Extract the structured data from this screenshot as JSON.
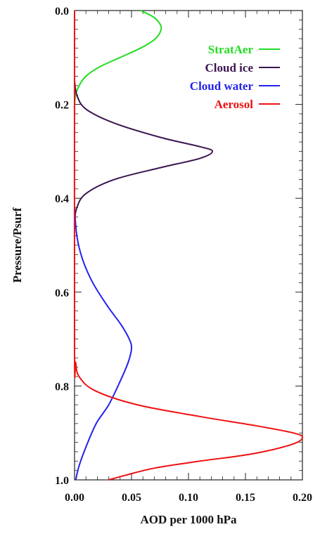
{
  "chart_data": {
    "type": "line",
    "xlabel": "AOD per 1000 hPa",
    "ylabel": "Pressure/Psurf",
    "xlim": [
      0.0,
      0.2
    ],
    "ylim": [
      1.0,
      0.0
    ],
    "y_inverted": true,
    "xticks": [
      "0.00",
      "0.05",
      "0.10",
      "0.15",
      "0.20"
    ],
    "yticks": [
      "0.0",
      "0.2",
      "0.4",
      "0.6",
      "0.8",
      "1.0"
    ],
    "legend_placement": "top-right",
    "grid": false,
    "series": [
      {
        "name": "StratAer",
        "color": "#22dd22",
        "points": [
          [
            0.058,
            0.0
          ],
          [
            0.068,
            0.012
          ],
          [
            0.074,
            0.025
          ],
          [
            0.076,
            0.04
          ],
          [
            0.071,
            0.06
          ],
          [
            0.058,
            0.08
          ],
          [
            0.04,
            0.1
          ],
          [
            0.022,
            0.12
          ],
          [
            0.01,
            0.14
          ],
          [
            0.004,
            0.16
          ],
          [
            0.001,
            0.18
          ],
          [
            0.0,
            0.2
          ]
        ]
      },
      {
        "name": "Cloud ice",
        "color": "#3b1550",
        "points": [
          [
            0.0,
            0.15
          ],
          [
            0.002,
            0.18
          ],
          [
            0.01,
            0.21
          ],
          [
            0.035,
            0.24
          ],
          [
            0.075,
            0.27
          ],
          [
            0.11,
            0.29
          ],
          [
            0.121,
            0.3
          ],
          [
            0.11,
            0.315
          ],
          [
            0.075,
            0.335
          ],
          [
            0.035,
            0.36
          ],
          [
            0.01,
            0.39
          ],
          [
            0.002,
            0.42
          ],
          [
            0.0,
            0.45
          ]
        ]
      },
      {
        "name": "Cloud water",
        "color": "#2222ee",
        "points": [
          [
            0.0,
            0.42
          ],
          [
            0.002,
            0.48
          ],
          [
            0.007,
            0.53
          ],
          [
            0.016,
            0.58
          ],
          [
            0.029,
            0.63
          ],
          [
            0.041,
            0.67
          ],
          [
            0.048,
            0.7
          ],
          [
            0.05,
            0.72
          ],
          [
            0.047,
            0.75
          ],
          [
            0.04,
            0.79
          ],
          [
            0.03,
            0.84
          ],
          [
            0.019,
            0.88
          ],
          [
            0.01,
            0.93
          ],
          [
            0.004,
            0.97
          ],
          [
            0.001,
            1.0
          ]
        ]
      },
      {
        "name": "Aerosol",
        "color": "#ee1111",
        "points": [
          [
            0.0,
            0.0
          ],
          [
            0.0,
            0.72
          ],
          [
            0.001,
            0.75
          ],
          [
            0.004,
            0.78
          ],
          [
            0.018,
            0.81
          ],
          [
            0.055,
            0.84
          ],
          [
            0.11,
            0.865
          ],
          [
            0.16,
            0.885
          ],
          [
            0.192,
            0.9
          ],
          [
            0.2,
            0.91
          ],
          [
            0.19,
            0.925
          ],
          [
            0.155,
            0.945
          ],
          [
            0.11,
            0.96
          ],
          [
            0.07,
            0.975
          ],
          [
            0.045,
            0.99
          ],
          [
            0.03,
            1.0
          ]
        ]
      }
    ]
  }
}
